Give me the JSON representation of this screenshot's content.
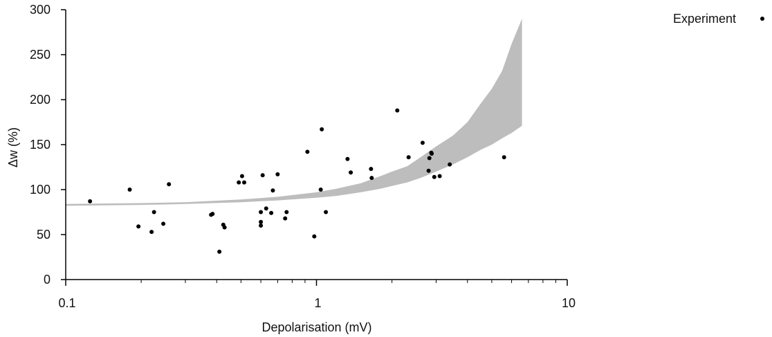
{
  "chart_data": {
    "type": "scatter",
    "xlabel": "Depolarisation (mV)",
    "ylabel": "Δw (%)",
    "x_scale": "log",
    "xlim": [
      0.1,
      10
    ],
    "ylim": [
      0,
      300
    ],
    "x_ticks": [
      0.1,
      1,
      10
    ],
    "x_tick_labels": [
      "0.1",
      "1",
      "10"
    ],
    "y_ticks": [
      0,
      50,
      100,
      150,
      200,
      250,
      300
    ],
    "y_tick_labels": [
      "0",
      "50",
      "100",
      "150",
      "200",
      "250",
      "300"
    ],
    "grid": false,
    "legend_position": "top-right",
    "colors": {
      "points": "#000000",
      "band": "#bdbdbd",
      "axis": "#000000"
    },
    "series": [
      {
        "name": "Experiment",
        "x": [
          0.125,
          0.18,
          0.195,
          0.22,
          0.225,
          0.245,
          0.258,
          0.38,
          0.385,
          0.41,
          0.425,
          0.43,
          0.49,
          0.505,
          0.515,
          0.6,
          0.6,
          0.6,
          0.61,
          0.63,
          0.66,
          0.67,
          0.7,
          0.75,
          0.76,
          0.92,
          0.98,
          1.04,
          1.05,
          1.09,
          1.33,
          1.37,
          1.65,
          1.66,
          2.1,
          2.33,
          2.65,
          2.8,
          2.82,
          2.87,
          2.88,
          2.95,
          3.1,
          3.4,
          5.6
        ],
        "y": [
          87,
          100,
          59,
          53,
          75,
          62,
          106,
          72,
          73,
          31,
          61,
          58,
          108,
          115,
          108,
          75,
          64,
          60,
          116,
          79,
          74,
          99,
          117,
          68,
          75,
          142,
          48,
          100,
          167,
          75,
          134,
          119,
          123,
          113,
          188,
          136,
          152,
          121,
          135,
          141,
          140,
          114,
          115,
          128,
          136
        ]
      },
      {
        "name": "",
        "type": "area-band",
        "x": [
          0.1,
          0.2,
          0.3,
          0.5,
          0.7,
          1.0,
          1.2,
          1.5,
          1.8,
          2.0,
          2.3,
          2.6,
          3.0,
          3.5,
          4.0,
          4.5,
          5.0,
          5.5,
          6.0,
          6.6
        ],
        "y_low": [
          82,
          83,
          84,
          86,
          88,
          91,
          93,
          97,
          101,
          104,
          108,
          113,
          120,
          128,
          136,
          144,
          150,
          157,
          163,
          171
        ],
        "y_high": [
          84,
          85,
          86,
          89,
          92,
          97,
          101,
          107,
          115,
          120,
          126,
          136,
          148,
          160,
          175,
          195,
          212,
          232,
          262,
          290
        ]
      }
    ]
  }
}
